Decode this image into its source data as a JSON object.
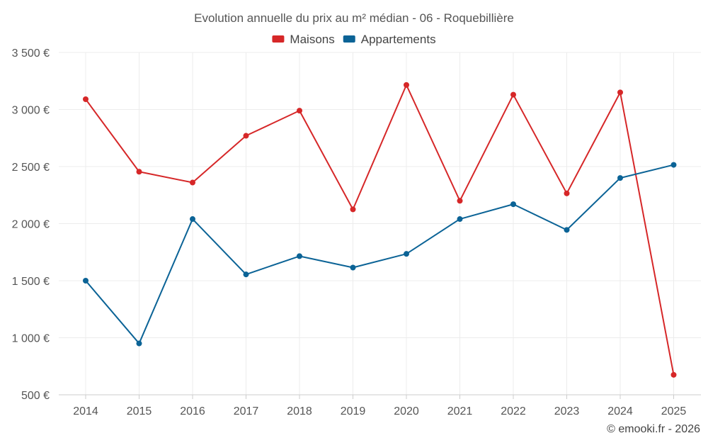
{
  "chart_data": {
    "type": "line",
    "title": "Evolution annuelle du prix au m² médian - 06 - Roquebillière",
    "categories": [
      "2014",
      "2015",
      "2016",
      "2017",
      "2018",
      "2019",
      "2020",
      "2021",
      "2022",
      "2023",
      "2024",
      "2025"
    ],
    "series": [
      {
        "name": "Maisons",
        "color": "#d62728",
        "values": [
          3090,
          2455,
          2360,
          2770,
          2990,
          2125,
          3215,
          2200,
          3130,
          2265,
          3150,
          675
        ]
      },
      {
        "name": "Appartements",
        "color": "#0b6396",
        "values": [
          1500,
          950,
          2040,
          1555,
          1715,
          1615,
          1735,
          2040,
          2170,
          1945,
          2400,
          2515
        ]
      }
    ],
    "yticks": [
      500,
      1000,
      1500,
      2000,
      2500,
      3000,
      3500
    ],
    "ytick_labels": [
      "500 €",
      "1 000 €",
      "1 500 €",
      "2 000 €",
      "2 500 €",
      "3 000 €",
      "3 500 €"
    ],
    "ylim": [
      500,
      3500
    ],
    "xlabel": "",
    "ylabel": "",
    "grid": true,
    "legend_position": "top-center"
  },
  "credit": "© emooki.fr - 2026"
}
